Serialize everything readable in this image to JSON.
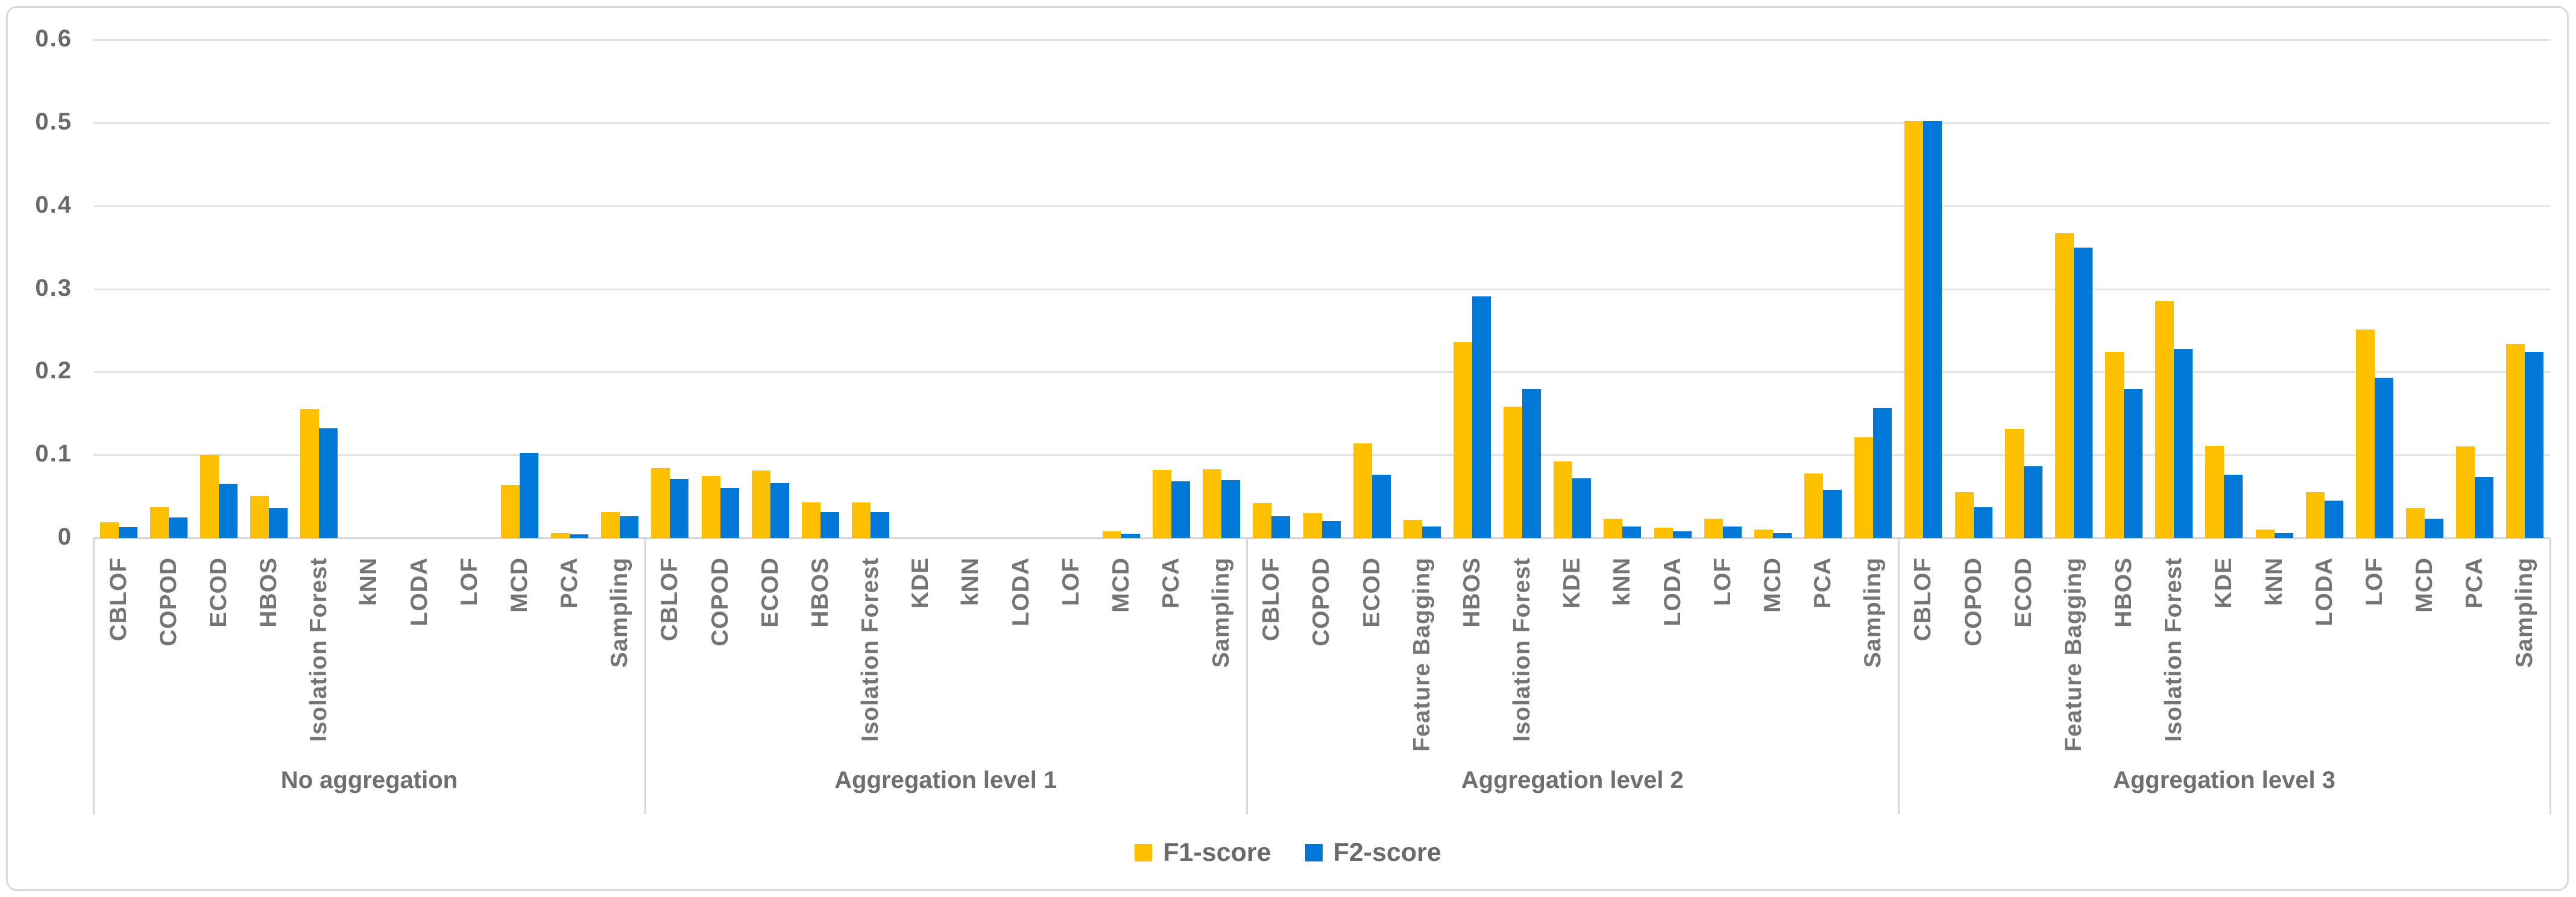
{
  "chart_data": {
    "type": "bar",
    "title": "",
    "xlabel": "",
    "ylabel": "",
    "ylim": [
      0,
      0.6
    ],
    "grid": true,
    "legend_position": "bottom-center",
    "y_axis": {
      "ticks": [
        "0",
        "0.1",
        "0.2",
        "0.3",
        "0.4",
        "0.5",
        "0.6"
      ],
      "tick_step": 0.1
    },
    "series": [
      {
        "name": "F1-score",
        "color": "#FFC000"
      },
      {
        "name": "F2-score",
        "color": "#0078D7"
      }
    ],
    "groups": [
      {
        "label": "No aggregation",
        "categories": [
          "CBLOF",
          "COPOD",
          "ECOD",
          "HBOS",
          "Isolation Forest",
          "kNN",
          "LODA",
          "LOF",
          "MCD",
          "PCA",
          "Sampling"
        ],
        "f1": [
          0.019,
          0.037,
          0.1,
          0.051,
          0.155,
          0,
          0,
          0,
          0.064,
          0.006,
          0.031
        ],
        "f2": [
          0.013,
          0.025,
          0.065,
          0.036,
          0.132,
          0,
          0,
          0,
          0.102,
          0.004,
          0.026
        ]
      },
      {
        "label": "Aggregation level 1",
        "categories": [
          "CBLOF",
          "COPOD",
          "ECOD",
          "HBOS",
          "Isolation Forest",
          "KDE",
          "kNN",
          "LODA",
          "LOF",
          "MCD",
          "PCA",
          "Sampling"
        ],
        "f1": [
          0.084,
          0.075,
          0.081,
          0.043,
          0.043,
          0,
          0,
          0,
          0,
          0.008,
          0.082,
          0.083
        ],
        "f2": [
          0.071,
          0.06,
          0.066,
          0.031,
          0.031,
          0,
          0,
          0,
          0,
          0.005,
          0.068,
          0.07
        ]
      },
      {
        "label": "Aggregation level 2",
        "categories": [
          "CBLOF",
          "COPOD",
          "ECOD",
          "Feature Bagging",
          "HBOS",
          "Isolation Forest",
          "KDE",
          "kNN",
          "LODA",
          "LOF",
          "MCD",
          "PCA",
          "Sampling"
        ],
        "f1": [
          0.042,
          0.03,
          0.114,
          0.022,
          0.236,
          0.158,
          0.092,
          0.023,
          0.012,
          0.023,
          0.01,
          0.078,
          0.121
        ],
        "f2": [
          0.026,
          0.02,
          0.076,
          0.014,
          0.291,
          0.179,
          0.072,
          0.014,
          0.008,
          0.014,
          0.006,
          0.058,
          0.157
        ]
      },
      {
        "label": "Aggregation level 3",
        "categories": [
          "CBLOF",
          "COPOD",
          "ECOD",
          "Feature Bagging",
          "HBOS",
          "Isolation Forest",
          "KDE",
          "kNN",
          "LODA",
          "LOF",
          "MCD",
          "PCA",
          "Sampling"
        ],
        "f1": [
          0.502,
          0.055,
          0.131,
          0.367,
          0.224,
          0.285,
          0.111,
          0.01,
          0.055,
          0.251,
          0.036,
          0.11,
          0.234
        ],
        "f2": [
          0.502,
          0.037,
          0.086,
          0.35,
          0.179,
          0.228,
          0.076,
          0.006,
          0.045,
          0.193,
          0.023,
          0.073,
          0.224
        ]
      }
    ]
  },
  "colors": {
    "grid": "#e4e4e4",
    "axis": "#d2d2d2",
    "border": "#d9d9d9",
    "tick_text": "#6a6a6a",
    "label_text": "#757575"
  }
}
